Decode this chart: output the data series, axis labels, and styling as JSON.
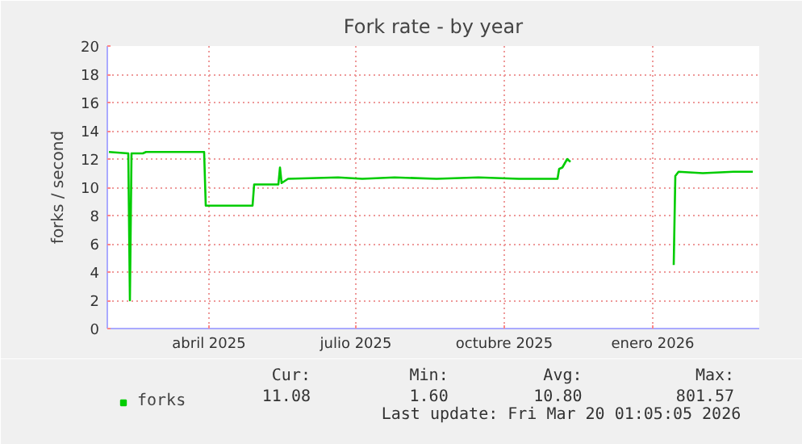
{
  "chart_data": {
    "type": "line",
    "title": "Fork rate - by year",
    "ylabel": "forks / second",
    "x": [
      "2025-01-29",
      "2025-02-10",
      "2025-02-11",
      "2025-02-12",
      "2025-02-19",
      "2025-02-21",
      "2025-03-29",
      "2025-03-30",
      "2025-04-28",
      "2025-04-29",
      "2025-05-14",
      "2025-05-15",
      "2025-05-16",
      "2025-05-20",
      "2025-06-20",
      "2025-07-05",
      "2025-07-25",
      "2025-08-20",
      "2025-09-15",
      "2025-10-10",
      "2025-11-03",
      "2025-11-04",
      "2025-11-06",
      "2025-11-09",
      "2025-11-11",
      "2025-12-10",
      "2026-01-14",
      "2026-01-15",
      "2026-01-17",
      "2026-02-01",
      "2026-02-20",
      "2026-03-04"
    ],
    "series": [
      {
        "name": "forks",
        "color": "#00cc00",
        "values": [
          12.5,
          12.4,
          2.0,
          12.4,
          12.4,
          12.5,
          12.5,
          8.7,
          8.7,
          10.2,
          10.2,
          11.4,
          10.3,
          10.6,
          10.7,
          10.6,
          10.7,
          10.6,
          10.7,
          10.6,
          10.6,
          11.3,
          11.4,
          12.0,
          11.8,
          null,
          4.5,
          10.8,
          11.1,
          11.0,
          11.1,
          11.1
        ]
      }
    ],
    "xlim": [
      "2025-01-28",
      "2026-03-08"
    ],
    "xticks": [
      {
        "value": "2025-04-01",
        "label": "abril 2025"
      },
      {
        "value": "2025-07-01",
        "label": "julio 2025"
      },
      {
        "value": "2025-10-01",
        "label": "octubre 2025"
      },
      {
        "value": "2026-01-01",
        "label": "enero 2026"
      }
    ],
    "ylim": [
      0,
      20
    ],
    "yticks": [
      0,
      2,
      4,
      6,
      8,
      10,
      12,
      14,
      16,
      18,
      20
    ],
    "grid": true,
    "legend": "bottom left",
    "line_style": "solid",
    "marker": "none",
    "annotations": [
      "Cur:",
      "Min:",
      "Avg:",
      "Max:",
      "11.08",
      "1.60",
      "10.80",
      "801.57",
      "Last update: Fri Mar 20 01:05:05 2026"
    ]
  }
}
